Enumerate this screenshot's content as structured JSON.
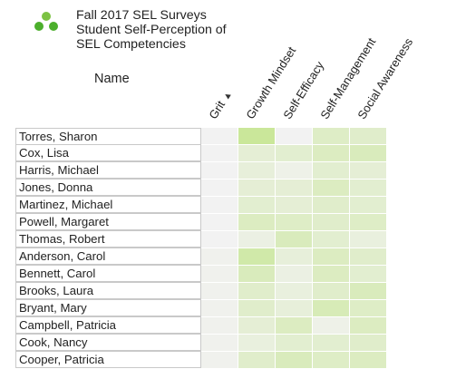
{
  "header": {
    "title_lines": [
      "Fall 2017 SEL Surveys",
      "Student Self-Perception of",
      "SEL Competencies"
    ],
    "logo_icon": "three-dots-logo-icon",
    "name_column_label": "Name",
    "sort_icon": "sort-triangle-icon"
  },
  "palette": {
    "logo_dark": "#4caf2c",
    "logo_light": "#7cc243",
    "low": "#f2f2f2",
    "high": "#c5e690"
  },
  "chart_data": {
    "type": "heatmap",
    "columns": [
      "Grit",
      "Growth Mindset",
      "Self-Efficacy",
      "Self-Management",
      "Social Awareness"
    ],
    "rows": [
      "Torres, Sharon",
      "Cox, Lisa",
      "Harris, Michael",
      "Jones, Donna",
      "Martinez, Michael",
      "Powell, Margaret",
      "Thomas, Robert",
      "Anderson, Carol",
      "Bennett, Carol",
      "Brooks, Laura",
      "Bryant, Mary",
      "Campbell, Patricia",
      "Cook, Nancy",
      "Cooper, Patricia"
    ],
    "values": [
      [
        0.0,
        0.9,
        0.0,
        0.45,
        0.4
      ],
      [
        0.0,
        0.3,
        0.35,
        0.5,
        0.55
      ],
      [
        0.0,
        0.25,
        0.1,
        0.35,
        0.3
      ],
      [
        0.0,
        0.3,
        0.3,
        0.5,
        0.35
      ],
      [
        0.0,
        0.35,
        0.3,
        0.4,
        0.35
      ],
      [
        0.0,
        0.5,
        0.45,
        0.4,
        0.45
      ],
      [
        0.0,
        0.15,
        0.55,
        0.35,
        0.2
      ],
      [
        0.05,
        0.75,
        0.25,
        0.5,
        0.4
      ],
      [
        0.05,
        0.55,
        0.15,
        0.5,
        0.35
      ],
      [
        0.05,
        0.4,
        0.2,
        0.4,
        0.55
      ],
      [
        0.05,
        0.4,
        0.25,
        0.6,
        0.45
      ],
      [
        0.05,
        0.3,
        0.5,
        0.1,
        0.5
      ],
      [
        0.05,
        0.2,
        0.35,
        0.35,
        0.4
      ],
      [
        0.05,
        0.4,
        0.55,
        0.45,
        0.5
      ]
    ],
    "sorted_by": "Grit",
    "legend": "none"
  }
}
